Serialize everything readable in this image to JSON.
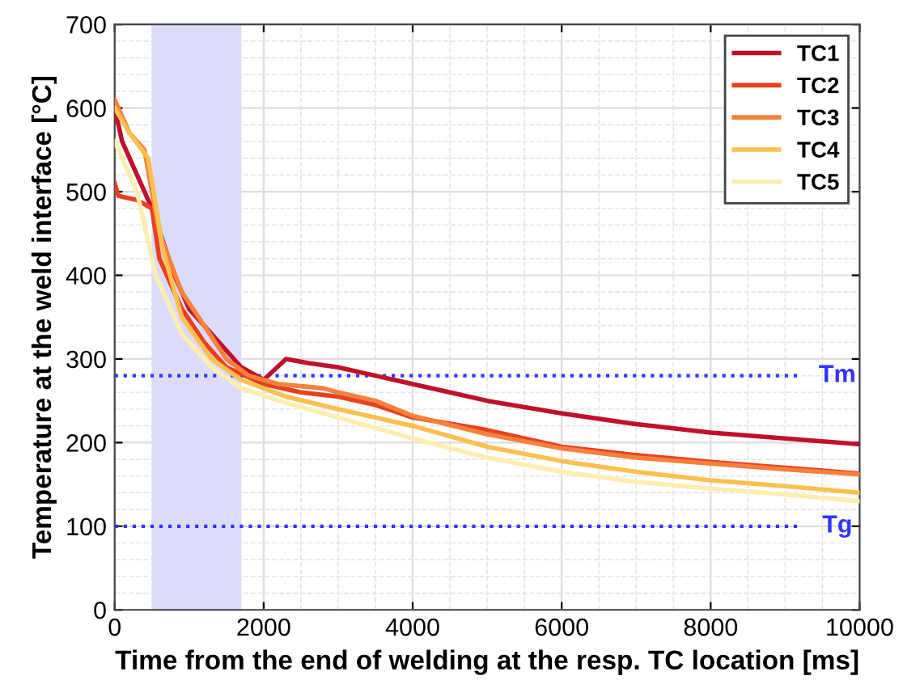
{
  "chart_data": {
    "type": "line",
    "xlabel": "Time from the end of welding at the resp. TC location [ms]",
    "ylabel": "Temperature at the weld interface [°C]",
    "xlim": [
      0,
      10000
    ],
    "xticks": [
      0,
      2000,
      4000,
      6000,
      8000,
      10000
    ],
    "ylim": [
      0,
      700
    ],
    "yticks": [
      0,
      100,
      200,
      300,
      400,
      500,
      600,
      700
    ],
    "grid": true,
    "legend": "top right",
    "line_style": "solid",
    "marker": "none",
    "series": [
      {
        "name": "TC1",
        "color": "#c0102a",
        "x": [
          0,
          100,
          500,
          800,
          1000,
          1400,
          1700,
          2000,
          2300,
          2600,
          3000,
          3500,
          4000,
          4500,
          5000,
          6000,
          7000,
          8000,
          9000,
          10000
        ],
        "values": [
          600,
          560,
          480,
          400,
          360,
          320,
          290,
          275,
          300,
          295,
          290,
          280,
          270,
          260,
          250,
          235,
          222,
          212,
          205,
          198
        ]
      },
      {
        "name": "TC2",
        "color": "#e8401e",
        "x": [
          0,
          50,
          300,
          500,
          600,
          900,
          1200,
          1500,
          2000,
          2500,
          3000,
          3500,
          4000,
          5000,
          6000,
          7000,
          8000,
          9000,
          10000
        ],
        "values": [
          510,
          495,
          490,
          480,
          420,
          360,
          320,
          290,
          270,
          260,
          255,
          245,
          230,
          215,
          195,
          185,
          177,
          170,
          163
        ]
      },
      {
        "name": "TC3",
        "color": "#f8803a",
        "x": [
          0,
          200,
          400,
          600,
          900,
          1200,
          1500,
          1800,
          2200,
          2800,
          3000,
          3500,
          4000,
          5000,
          6000,
          7000,
          8000,
          9000,
          10000
        ],
        "values": [
          610,
          570,
          550,
          450,
          380,
          340,
          300,
          280,
          270,
          265,
          260,
          250,
          232,
          210,
          193,
          182,
          175,
          168,
          162
        ]
      },
      {
        "name": "TC4",
        "color": "#fbc050",
        "x": [
          0,
          200,
          450,
          650,
          900,
          1300,
          1700,
          2300,
          3000,
          4000,
          5000,
          6000,
          7000,
          8000,
          9000,
          10000
        ],
        "values": [
          600,
          570,
          540,
          430,
          350,
          300,
          275,
          255,
          240,
          220,
          195,
          178,
          165,
          155,
          148,
          140
        ]
      },
      {
        "name": "TC5",
        "color": "#fdeeb0",
        "x": [
          0,
          300,
          550,
          900,
          1300,
          1700,
          2200,
          3000,
          4000,
          5000,
          6000,
          7000,
          8000,
          9000,
          10000
        ],
        "values": [
          560,
          500,
          400,
          330,
          290,
          265,
          250,
          230,
          205,
          182,
          165,
          153,
          145,
          138,
          130
        ]
      }
    ],
    "ref_lines": [
      {
        "axis": "y",
        "value": 280,
        "label": "Tm",
        "color": "#3333ff",
        "line_style": "dotted"
      },
      {
        "axis": "y",
        "value": 100,
        "label": "Tg",
        "color": "#3333ff",
        "line_style": "dotted"
      }
    ],
    "bands": [
      {
        "axis": "x",
        "from": 500,
        "to": 1700,
        "color": "#dcdcfa"
      }
    ]
  }
}
